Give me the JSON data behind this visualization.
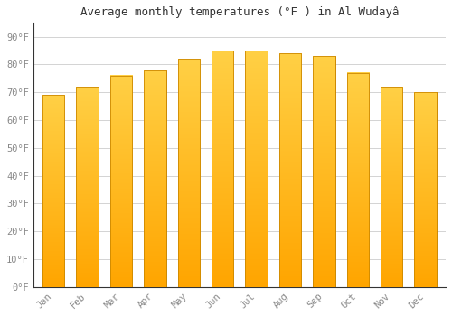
{
  "title": "Average monthly temperatures (°F ) in Al Wudayâ",
  "months": [
    "Jan",
    "Feb",
    "Mar",
    "Apr",
    "May",
    "Jun",
    "Jul",
    "Aug",
    "Sep",
    "Oct",
    "Nov",
    "Dec"
  ],
  "values": [
    69,
    72,
    76,
    78,
    82,
    85,
    85,
    84,
    83,
    77,
    72,
    70
  ],
  "bar_color_top": "#FFD045",
  "bar_color_bottom": "#FFA500",
  "bar_edge_color": "#CC8800",
  "background_color": "#FFFFFF",
  "grid_color": "#CCCCCC",
  "yticks": [
    0,
    10,
    20,
    30,
    40,
    50,
    60,
    70,
    80,
    90
  ],
  "ytick_labels": [
    "0°F",
    "10°F",
    "20°F",
    "30°F",
    "40°F",
    "50°F",
    "60°F",
    "70°F",
    "80°F",
    "90°F"
  ],
  "ylim": [
    0,
    95
  ],
  "title_fontsize": 9,
  "tick_fontsize": 7.5,
  "tick_color": "#888888",
  "bar_width": 0.65
}
